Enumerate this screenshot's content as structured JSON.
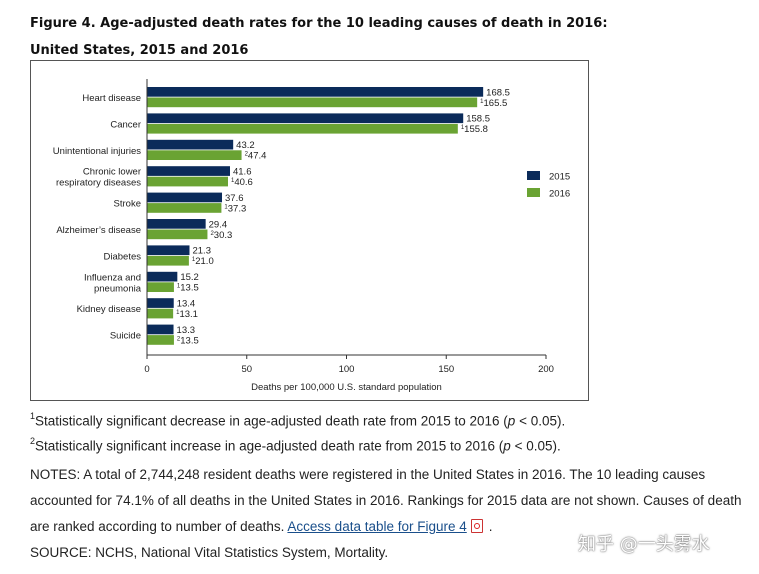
{
  "title": {
    "line1": "Figure 4. Age-adjusted death rates for the 10 leading causes of death in 2016:",
    "line2": "United States, 2015 and 2016"
  },
  "colors": {
    "series_2015": "#0b2b5a",
    "series_2016": "#6aa333"
  },
  "chart_data": {
    "type": "bar",
    "orientation": "horizontal",
    "categories": [
      [
        "Heart disease"
      ],
      [
        "Cancer"
      ],
      [
        "Unintentional injuries"
      ],
      [
        "Chronic lower",
        "respiratory diseases"
      ],
      [
        "Stroke"
      ],
      [
        "Alzheimer’s disease"
      ],
      [
        "Diabetes"
      ],
      [
        "Influenza and",
        "pneumonia"
      ],
      [
        "Kidney disease"
      ],
      [
        "Suicide"
      ]
    ],
    "series": [
      {
        "name": "2015",
        "values": [
          168.5,
          158.5,
          43.2,
          41.6,
          37.6,
          29.4,
          21.3,
          15.2,
          13.4,
          13.3
        ],
        "labels": [
          "168.5",
          "158.5",
          "43.2",
          "41.6",
          "37.6",
          "29.4",
          "21.3",
          "15.2",
          "13.4",
          "13.3"
        ]
      },
      {
        "name": "2016",
        "values": [
          165.5,
          155.8,
          47.4,
          40.6,
          37.3,
          30.3,
          21.0,
          13.5,
          13.1,
          13.5
        ],
        "labels": [
          "165.5",
          "155.8",
          "47.4",
          "40.6",
          "37.3",
          "30.3",
          "21.0",
          "13.5",
          "13.1",
          "13.5"
        ],
        "label_superscripts": [
          "1",
          "1",
          "2",
          "1",
          "1",
          "2",
          "1",
          "1",
          "1",
          "2"
        ]
      }
    ],
    "xlabel": "Deaths per 100,000 U.S. standard population",
    "xlim": [
      0,
      200
    ],
    "xticks": [
      "0",
      "50",
      "100",
      "150",
      "200"
    ],
    "grid": false,
    "legend_position": "right"
  },
  "footnotes": {
    "f1": {
      "mark": "1",
      "text": "Statistically significant decrease in age-adjusted death rate from 2015 to 2016 (",
      "p": "p",
      "tail": " < 0.05)."
    },
    "f2": {
      "mark": "2",
      "text": "Statistically significant increase in age-adjusted death rate from 2015 to 2016 (",
      "p": "p",
      "tail": " < 0.05)."
    }
  },
  "notes": {
    "text": "NOTES: A total of 2,744,248 resident deaths were registered in the United States in 2016. The 10 leading causes accounted for 74.1% of all deaths in the United States in 2016. Rankings for 2015 data are not shown. Causes of death are ranked according to number of deaths. ",
    "link": "Access data table for Figure 4",
    "after": ".",
    "source": "SOURCE: NCHS, National Vital Statistics System, Mortality."
  },
  "watermark": "知乎 @一头雾水"
}
